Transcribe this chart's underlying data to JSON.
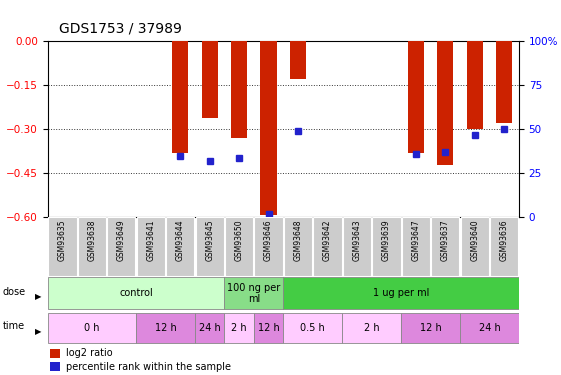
{
  "title": "GDS1753 / 37989",
  "samples": [
    "GSM93635",
    "GSM93638",
    "GSM93649",
    "GSM93641",
    "GSM93644",
    "GSM93645",
    "GSM93650",
    "GSM93646",
    "GSM93648",
    "GSM93642",
    "GSM93643",
    "GSM93639",
    "GSM93647",
    "GSM93637",
    "GSM93640",
    "GSM93636"
  ],
  "log2_ratio": [
    0,
    0,
    0,
    0,
    -0.38,
    -0.26,
    -0.33,
    -0.59,
    -0.13,
    0,
    0,
    0,
    -0.38,
    -0.42,
    -0.3,
    -0.28
  ],
  "percentile": [
    null,
    null,
    null,
    null,
    35,
    32,
    34,
    2,
    49,
    null,
    null,
    null,
    36,
    37,
    47,
    50
  ],
  "ylim_left": [
    -0.6,
    0.0
  ],
  "ylim_right": [
    0,
    100
  ],
  "yticks_left": [
    0,
    -0.15,
    -0.3,
    -0.45,
    -0.6
  ],
  "yticks_right": [
    0,
    25,
    50,
    75,
    100
  ],
  "dose_groups": [
    {
      "label": "control",
      "start": 0,
      "end": 6,
      "color": "#ccffcc"
    },
    {
      "label": "100 ng per\nml",
      "start": 6,
      "end": 8,
      "color": "#88dd88"
    },
    {
      "label": "1 ug per ml",
      "start": 8,
      "end": 16,
      "color": "#44cc44"
    }
  ],
  "time_groups": [
    {
      "label": "0 h",
      "start": 0,
      "end": 3,
      "color": "#ffccff"
    },
    {
      "label": "12 h",
      "start": 3,
      "end": 5,
      "color": "#dd88dd"
    },
    {
      "label": "24 h",
      "start": 5,
      "end": 6,
      "color": "#dd88dd"
    },
    {
      "label": "2 h",
      "start": 6,
      "end": 7,
      "color": "#ffccff"
    },
    {
      "label": "12 h",
      "start": 7,
      "end": 8,
      "color": "#dd88dd"
    },
    {
      "label": "0.5 h",
      "start": 8,
      "end": 10,
      "color": "#ffccff"
    },
    {
      "label": "2 h",
      "start": 10,
      "end": 12,
      "color": "#ffccff"
    },
    {
      "label": "12 h",
      "start": 12,
      "end": 14,
      "color": "#dd88dd"
    },
    {
      "label": "24 h",
      "start": 14,
      "end": 16,
      "color": "#dd88dd"
    }
  ],
  "bar_color": "#cc2200",
  "marker_color": "#2222cc",
  "grid_color": "#333333",
  "sample_bg": "#cccccc",
  "label_fontsize": 5.5,
  "axis_fontsize": 7.5,
  "title_fontsize": 10
}
